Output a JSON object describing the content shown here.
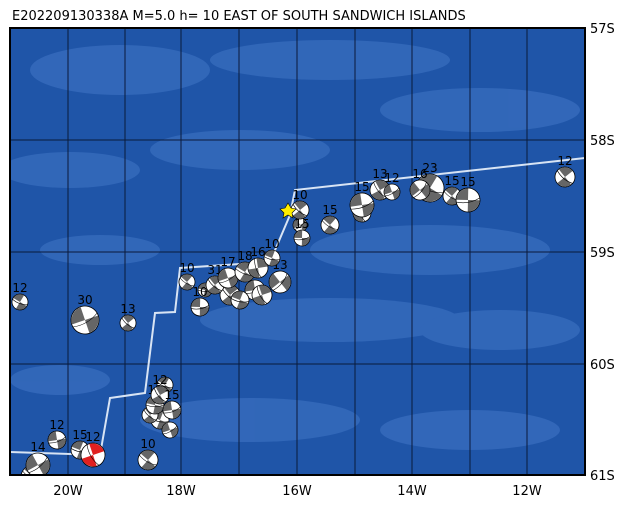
{
  "title": "E202209130338A M=5.0 h= 10 EAST OF SOUTH SANDWICH ISLANDS",
  "lat_labels": [
    "57S",
    "58S",
    "59S",
    "60S",
    "61S"
  ],
  "lon_labels": [
    "20W",
    "18W",
    "16W",
    "14W",
    "12W"
  ],
  "event_labels": [
    "12",
    "30",
    "13",
    "12",
    "15",
    "12",
    "14",
    "10",
    "18",
    "12",
    "15",
    "10",
    "10",
    "31",
    "17",
    "18",
    "16",
    "13",
    "10",
    "10",
    "15",
    "15",
    "15",
    "13",
    "12",
    "23",
    "16",
    "15",
    "15",
    "12"
  ]
}
